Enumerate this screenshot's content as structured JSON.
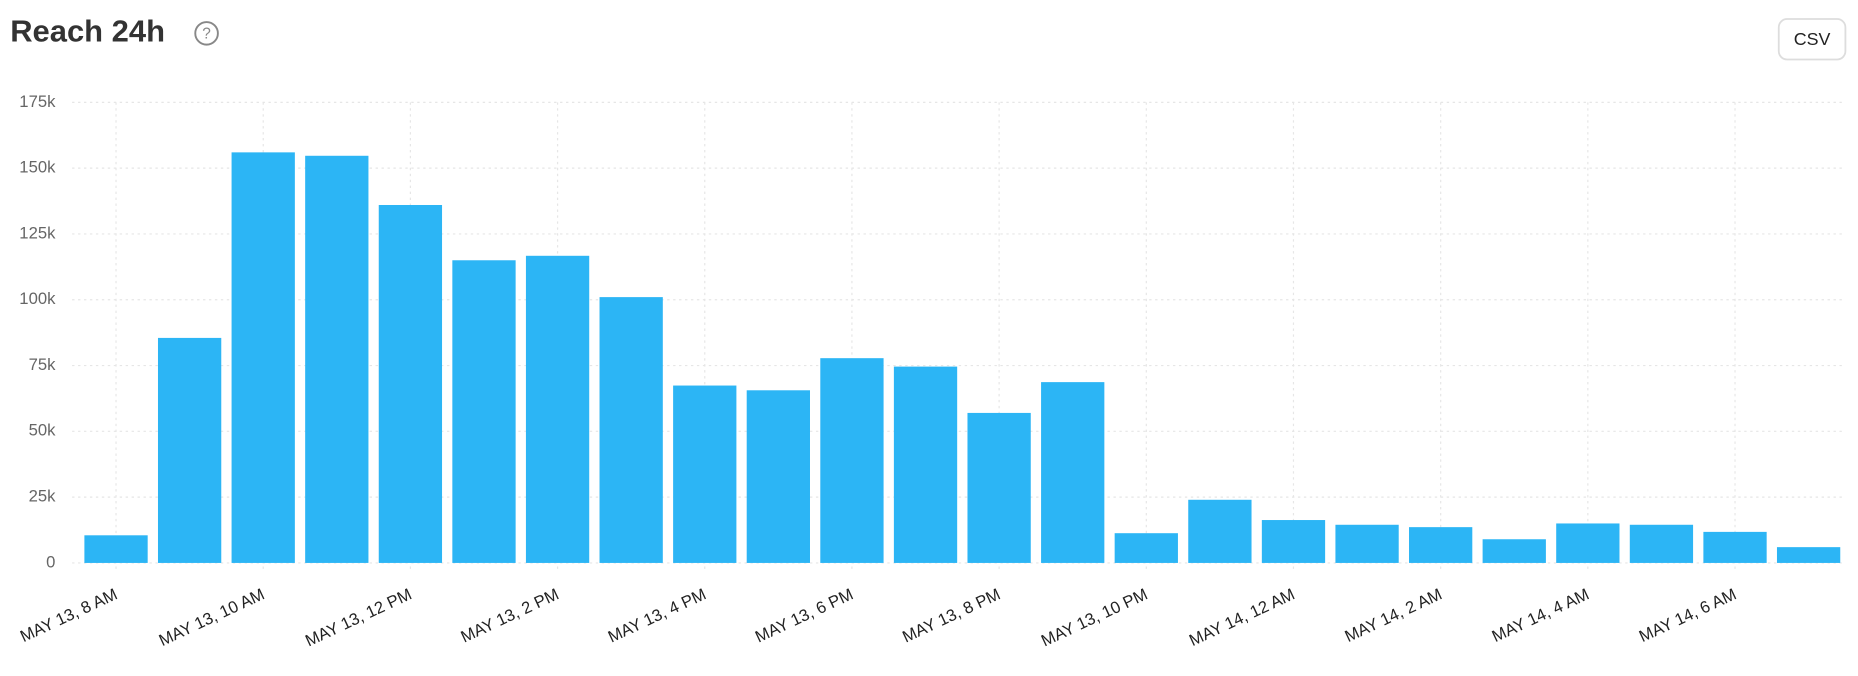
{
  "chart_data": {
    "type": "bar",
    "title": "Reach 24h",
    "categories": [
      "MAY 13, 8 AM",
      null,
      "MAY 13, 10 AM",
      null,
      "MAY 13, 12 PM",
      null,
      "MAY 13, 2 PM",
      null,
      "MAY 13, 4 PM",
      null,
      "MAY 13, 6 PM",
      null,
      "MAY 13, 8 PM",
      null,
      "MAY 13, 10 PM",
      null,
      "MAY 14, 12 AM",
      null,
      "MAY 14, 2 AM",
      null,
      "MAY 14, 4 AM",
      null,
      "MAY 14, 6 AM",
      null
    ],
    "values": [
      10500,
      85500,
      156000,
      154700,
      136000,
      115000,
      116700,
      101000,
      67400,
      65600,
      77800,
      74600,
      57000,
      68700,
      11300,
      24000,
      16300,
      14500,
      13600,
      9000,
      15000,
      14500,
      11800,
      6000
    ],
    "color": "#2cb5f5",
    "ylim": [
      0,
      175000
    ],
    "yticks": [
      0,
      {
        "value": 25000,
        "label": "25k"
      },
      {
        "value": 50000,
        "label": "50k"
      },
      {
        "value": 75000,
        "label": "75k"
      },
      {
        "value": 100000,
        "label": "100k"
      },
      {
        "value": 125000,
        "label": "125k"
      },
      {
        "value": 150000,
        "label": "150k"
      },
      {
        "value": 175000,
        "label": "175k"
      }
    ],
    "grid": true
  },
  "csv_button": "CSV"
}
